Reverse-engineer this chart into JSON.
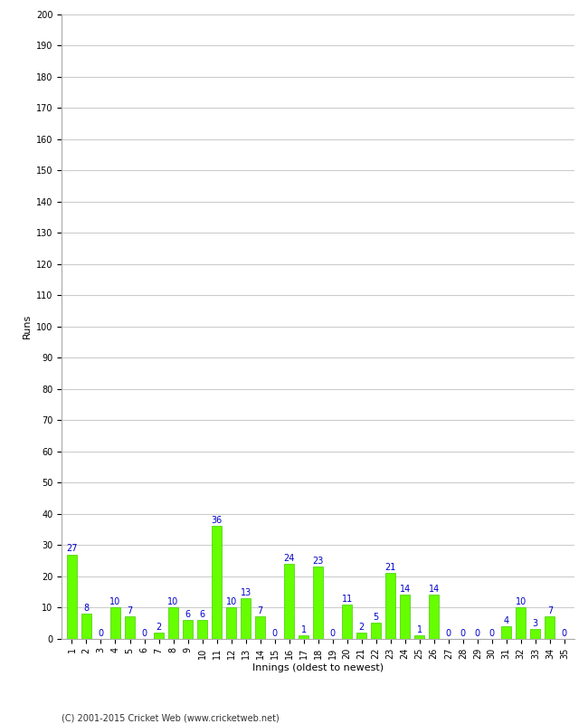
{
  "innings": [
    1,
    2,
    3,
    4,
    5,
    6,
    7,
    8,
    9,
    10,
    11,
    12,
    13,
    14,
    15,
    16,
    17,
    18,
    19,
    20,
    21,
    22,
    23,
    24,
    25,
    26,
    27,
    28,
    29,
    30,
    31,
    32,
    33,
    34,
    35
  ],
  "runs": [
    27,
    8,
    0,
    10,
    7,
    0,
    2,
    10,
    6,
    6,
    36,
    10,
    13,
    7,
    0,
    24,
    1,
    23,
    0,
    11,
    2,
    5,
    21,
    14,
    1,
    14,
    0,
    0,
    0,
    0,
    4,
    10,
    3,
    7,
    0
  ],
  "bar_color": "#66ff00",
  "bar_edge_color": "#44cc00",
  "label_color": "#0000cc",
  "ylabel": "Runs",
  "xlabel": "Innings (oldest to newest)",
  "ylim": [
    0,
    200
  ],
  "yticks": [
    0,
    10,
    20,
    30,
    40,
    50,
    60,
    70,
    80,
    90,
    100,
    110,
    120,
    130,
    140,
    150,
    160,
    170,
    180,
    190,
    200
  ],
  "grid_color": "#cccccc",
  "background_color": "#ffffff",
  "label_fontsize": 7,
  "tick_fontsize": 7,
  "footer": "(C) 2001-2015 Cricket Web (www.cricketweb.net)"
}
